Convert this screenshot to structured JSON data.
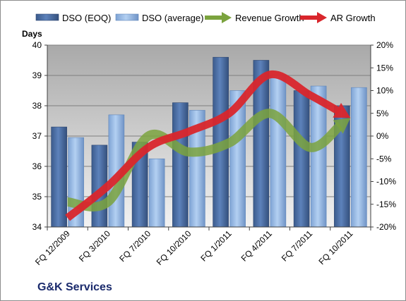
{
  "company": "G&K Services",
  "chart_data": {
    "type": "bar",
    "categories": [
      "FQ 12/2009",
      "FQ 3/2010",
      "FQ 7/2010",
      "FQ 10/2010",
      "FQ 1/2011",
      "FQ 4/2011",
      "FQ 7/2011",
      "FQ 10/2011"
    ],
    "series": [
      {
        "name": "DSO (EOQ)",
        "kind": "bar",
        "axis": "left",
        "color": "#4a6fa5",
        "values": [
          37.3,
          36.7,
          36.8,
          38.1,
          39.6,
          39.5,
          38.5,
          38.0
        ]
      },
      {
        "name": "DSO (average)",
        "kind": "bar",
        "axis": "left",
        "color": "#8fb4e3",
        "values": [
          36.95,
          37.7,
          36.25,
          37.85,
          38.5,
          39.0,
          38.65,
          38.6
        ]
      },
      {
        "name": "Revenue Growth",
        "kind": "arrow-line",
        "axis": "right",
        "color": "#7ba33e",
        "values": [
          -14.5,
          -14.5,
          0,
          -3.5,
          -1.5,
          5,
          -2.5,
          4
        ]
      },
      {
        "name": "AR Growth",
        "kind": "arrow-line",
        "axis": "right",
        "color": "#d9262c",
        "values": [
          -18,
          -11,
          -2.5,
          1,
          5,
          13.5,
          9,
          4
        ]
      }
    ],
    "ylabel": "Days",
    "ylim": [
      34,
      40
    ],
    "yticks": [
      "34",
      "35",
      "36",
      "37",
      "38",
      "39",
      "40"
    ],
    "y2lim": [
      -20,
      20
    ],
    "y2ticks": [
      "-20%",
      "-15%",
      "-10%",
      "-5%",
      "0%",
      "5%",
      "10%",
      "15%",
      "20%"
    ],
    "grid": true,
    "legend_position": "top",
    "plot_background": "gradient-grey"
  }
}
